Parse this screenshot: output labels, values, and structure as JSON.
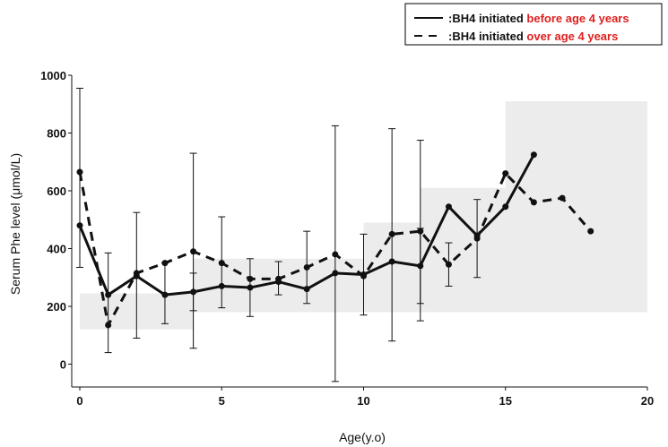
{
  "chart_data": {
    "type": "line",
    "xlabel": "Age(y.o)",
    "ylabel": "Serum Phe level (μmol/L)",
    "xlim": [
      0,
      20
    ],
    "ylim": [
      -80,
      1020
    ],
    "xticks": [
      "0",
      "5",
      "10",
      "15",
      "20"
    ],
    "yticks": [
      "0",
      "200",
      "400",
      "600",
      "800",
      "1000"
    ],
    "legend_position": "top-right",
    "legend": [
      {
        "prefix": ":BH4 initiated ",
        "highlight": "before age 4 years",
        "style": "solid"
      },
      {
        "prefix": ":BH4 initiated ",
        "highlight": "over age 4 years",
        "style": "dashed"
      }
    ],
    "highlight_color": "#e02020",
    "line_color": "#111111",
    "band_color": "#ececec",
    "reference_bands": [
      {
        "x": [
          0,
          4
        ],
        "y": [
          120,
          245
        ]
      },
      {
        "x": [
          4,
          10
        ],
        "y": [
          180,
          365
        ]
      },
      {
        "x": [
          10,
          12
        ],
        "y": [
          180,
          490
        ]
      },
      {
        "x": [
          12,
          15
        ],
        "y": [
          180,
          610
        ]
      },
      {
        "x": [
          15,
          20
        ],
        "y": [
          180,
          910
        ]
      }
    ],
    "series": [
      {
        "name": "BH4 initiated before age 4 years",
        "style": "solid",
        "x": [
          0,
          1,
          2,
          3,
          4,
          5,
          6,
          7,
          8,
          9,
          10,
          11,
          12,
          13,
          14,
          15,
          16
        ],
        "y": [
          480,
          240,
          305,
          240,
          250,
          270,
          265,
          285,
          260,
          315,
          310,
          355,
          340,
          545,
          445,
          545,
          725
        ]
      },
      {
        "name": "BH4 initiated over age 4 years",
        "style": "dashed",
        "x": [
          0,
          1,
          2,
          3,
          4,
          5,
          6,
          7,
          8,
          9,
          10,
          11,
          12,
          13,
          14,
          15,
          16,
          17,
          18
        ],
        "y": [
          665,
          135,
          315,
          350,
          390,
          350,
          295,
          295,
          335,
          380,
          305,
          450,
          460,
          345,
          435,
          660,
          560,
          575,
          460
        ]
      }
    ],
    "error_bars": [
      {
        "x": 0,
        "low": 335,
        "high": 955
      },
      {
        "x": 1,
        "low": 40,
        "high": 385
      },
      {
        "x": 2,
        "low": 90,
        "high": 525
      },
      {
        "x": 3,
        "low": 140,
        "high": 350
      },
      {
        "x": 4,
        "low": 55,
        "high": 730
      },
      {
        "x": 4,
        "low": 185,
        "high": 315
      },
      {
        "x": 5,
        "low": 195,
        "high": 510
      },
      {
        "x": 6,
        "low": 165,
        "high": 365
      },
      {
        "x": 7,
        "low": 240,
        "high": 355
      },
      {
        "x": 8,
        "low": 210,
        "high": 460
      },
      {
        "x": 9,
        "low": -60,
        "high": 825
      },
      {
        "x": 10,
        "low": 170,
        "high": 450
      },
      {
        "x": 11,
        "low": 80,
        "high": 815
      },
      {
        "x": 12,
        "low": 150,
        "high": 775
      },
      {
        "x": 12,
        "low": 210,
        "high": 470
      },
      {
        "x": 13,
        "low": 270,
        "high": 420
      },
      {
        "x": 14,
        "low": 300,
        "high": 570
      }
    ]
  }
}
